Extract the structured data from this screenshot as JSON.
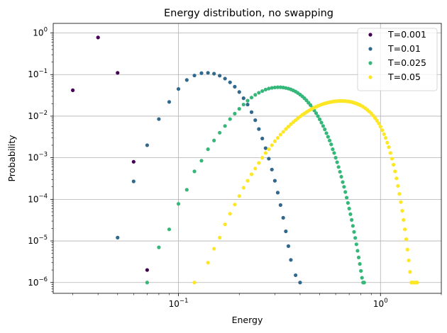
{
  "chart_data": {
    "type": "scatter",
    "title": "Energy distribution, no swapping",
    "xlabel": "Energy",
    "ylabel": "Probability",
    "xscale": "log",
    "yscale": "log",
    "xlim": [
      0.024,
      2.0
    ],
    "ylim": [
      5.5e-07,
      1.7
    ],
    "grid": true,
    "legend_position": "top-right",
    "x_ticks": [
      {
        "base": "10",
        "exp": "−1"
      },
      {
        "base": "10",
        "exp": "0"
      }
    ],
    "y_ticks": [
      {
        "base": "10",
        "exp": "−6"
      },
      {
        "base": "10",
        "exp": "−5"
      },
      {
        "base": "10",
        "exp": "−4"
      },
      {
        "base": "10",
        "exp": "−3"
      },
      {
        "base": "10",
        "exp": "−2"
      },
      {
        "base": "10",
        "exp": "−1"
      },
      {
        "base": "10",
        "exp": "0"
      }
    ],
    "series": [
      {
        "name": "T=0.001",
        "color": "#440154",
        "points": [
          [
            0.03,
            0.042
          ],
          [
            0.04,
            0.78
          ],
          [
            0.05,
            0.11
          ],
          [
            0.06,
            0.0008
          ],
          [
            0.07,
            2e-06
          ]
        ]
      },
      {
        "name": "T=0.01",
        "color": "#31688e",
        "points": [
          [
            0.05,
            1.2e-05
          ],
          [
            0.06,
            0.00027
          ],
          [
            0.07,
            0.002
          ],
          [
            0.08,
            0.0085
          ],
          [
            0.09,
            0.022
          ],
          [
            0.1,
            0.045
          ],
          [
            0.11,
            0.074
          ],
          [
            0.12,
            0.095
          ],
          [
            0.13,
            0.108
          ],
          [
            0.14,
            0.11
          ],
          [
            0.15,
            0.105
          ],
          [
            0.16,
            0.094
          ],
          [
            0.17,
            0.08
          ],
          [
            0.18,
            0.065
          ],
          [
            0.19,
            0.051
          ],
          [
            0.2,
            0.038
          ],
          [
            0.21,
            0.027
          ],
          [
            0.22,
            0.019
          ],
          [
            0.23,
            0.0125
          ],
          [
            0.24,
            0.008
          ],
          [
            0.25,
            0.0049
          ],
          [
            0.26,
            0.0029
          ],
          [
            0.27,
            0.0017
          ],
          [
            0.28,
            0.00095
          ],
          [
            0.29,
            0.00052
          ],
          [
            0.3,
            0.00028
          ],
          [
            0.31,
            0.000145
          ],
          [
            0.32,
            7.3e-05
          ],
          [
            0.33,
            3.6e-05
          ],
          [
            0.34,
            1.7e-05
          ],
          [
            0.35,
            7.5e-06
          ],
          [
            0.36,
            3.5e-06
          ],
          [
            0.38,
            1.5e-06
          ],
          [
            0.4,
            1e-06
          ]
        ]
      },
      {
        "name": "T=0.025",
        "color": "#35b779",
        "points": [
          [
            0.07,
            1e-06
          ],
          [
            0.08,
            7e-06
          ],
          [
            0.09,
            1.9e-05
          ],
          [
            0.1,
            7.8e-05
          ],
          [
            0.11,
            0.00017
          ],
          [
            0.12,
            0.00047
          ],
          [
            0.13,
            0.00085
          ],
          [
            0.14,
            0.0016
          ],
          [
            0.15,
            0.0026
          ],
          [
            0.16,
            0.004
          ],
          [
            0.17,
            0.0058
          ],
          [
            0.18,
            0.0085
          ],
          [
            0.19,
            0.0115
          ],
          [
            0.2,
            0.015
          ],
          [
            0.21,
            0.019
          ],
          [
            0.22,
            0.0235
          ],
          [
            0.23,
            0.028
          ],
          [
            0.24,
            0.0325
          ],
          [
            0.25,
            0.0365
          ],
          [
            0.26,
            0.04
          ],
          [
            0.27,
            0.0435
          ],
          [
            0.28,
            0.046
          ],
          [
            0.29,
            0.0478
          ],
          [
            0.3,
            0.049
          ],
          [
            0.31,
            0.0495
          ],
          [
            0.32,
            0.0495
          ],
          [
            0.33,
            0.0488
          ],
          [
            0.34,
            0.0475
          ],
          [
            0.35,
            0.046
          ],
          [
            0.36,
            0.044
          ],
          [
            0.37,
            0.0415
          ],
          [
            0.38,
            0.039
          ],
          [
            0.39,
            0.036
          ],
          [
            0.4,
            0.033
          ],
          [
            0.41,
            0.03
          ],
          [
            0.42,
            0.027
          ],
          [
            0.43,
            0.024
          ],
          [
            0.44,
            0.021
          ],
          [
            0.45,
            0.0185
          ],
          [
            0.46,
            0.016
          ],
          [
            0.47,
            0.0138
          ],
          [
            0.48,
            0.0118
          ],
          [
            0.49,
            0.01
          ],
          [
            0.5,
            0.0084
          ],
          [
            0.51,
            0.007
          ],
          [
            0.52,
            0.0058
          ],
          [
            0.53,
            0.0048
          ],
          [
            0.54,
            0.0039
          ],
          [
            0.55,
            0.0032
          ],
          [
            0.56,
            0.0026
          ],
          [
            0.57,
            0.0021
          ],
          [
            0.58,
            0.0016
          ],
          [
            0.59,
            0.0013
          ],
          [
            0.6,
            0.001
          ],
          [
            0.61,
            0.00078
          ],
          [
            0.62,
            0.0006
          ],
          [
            0.63,
            0.00046
          ],
          [
            0.64,
            0.00035
          ],
          [
            0.65,
            0.00026
          ],
          [
            0.66,
            0.0002
          ],
          [
            0.67,
            0.00015
          ],
          [
            0.68,
            0.00011
          ],
          [
            0.69,
            8.2e-05
          ],
          [
            0.7,
            6e-05
          ],
          [
            0.71,
            4.4e-05
          ],
          [
            0.72,
            3.2e-05
          ],
          [
            0.73,
            2.3e-05
          ],
          [
            0.74,
            1.65e-05
          ],
          [
            0.75,
            1.18e-05
          ],
          [
            0.76,
            8.3e-06
          ],
          [
            0.77,
            5.8e-06
          ],
          [
            0.78,
            4e-06
          ],
          [
            0.79,
            2.8e-06
          ],
          [
            0.8,
            1.9e-06
          ],
          [
            0.81,
            1.3e-06
          ],
          [
            0.82,
            1e-06
          ],
          [
            0.83,
            1e-06
          ]
        ]
      },
      {
        "name": "T=0.05",
        "color": "#fde725",
        "points": [
          [
            0.12,
            1e-06
          ],
          [
            0.14,
            3e-06
          ],
          [
            0.15,
            6.5e-06
          ],
          [
            0.16,
            1.2e-05
          ],
          [
            0.17,
            2.5e-05
          ],
          [
            0.18,
            4.5e-05
          ],
          [
            0.19,
            7.5e-05
          ],
          [
            0.2,
            0.00012
          ],
          [
            0.21,
            0.00019
          ],
          [
            0.22,
            0.00028
          ],
          [
            0.23,
            0.0004
          ],
          [
            0.24,
            0.00055
          ],
          [
            0.25,
            0.00075
          ],
          [
            0.26,
            0.001
          ],
          [
            0.27,
            0.0013
          ],
          [
            0.28,
            0.0016
          ],
          [
            0.29,
            0.002
          ],
          [
            0.3,
            0.0025
          ],
          [
            0.31,
            0.003
          ],
          [
            0.32,
            0.0036
          ],
          [
            0.33,
            0.0042
          ],
          [
            0.34,
            0.0049
          ],
          [
            0.35,
            0.0056
          ],
          [
            0.36,
            0.0064
          ],
          [
            0.37,
            0.0072
          ],
          [
            0.38,
            0.008
          ],
          [
            0.39,
            0.0089
          ],
          [
            0.4,
            0.0098
          ],
          [
            0.41,
            0.0107
          ],
          [
            0.42,
            0.0116
          ],
          [
            0.43,
            0.0125
          ],
          [
            0.44,
            0.0134
          ],
          [
            0.45,
            0.0143
          ],
          [
            0.46,
            0.0152
          ],
          [
            0.47,
            0.016
          ],
          [
            0.48,
            0.0168
          ],
          [
            0.49,
            0.0176
          ],
          [
            0.5,
            0.0183
          ],
          [
            0.51,
            0.019
          ],
          [
            0.52,
            0.0196
          ],
          [
            0.53,
            0.0202
          ],
          [
            0.54,
            0.0207
          ],
          [
            0.55,
            0.0212
          ],
          [
            0.56,
            0.0216
          ],
          [
            0.57,
            0.022
          ],
          [
            0.58,
            0.0223
          ],
          [
            0.59,
            0.0226
          ],
          [
            0.6,
            0.0228
          ],
          [
            0.61,
            0.023
          ],
          [
            0.62,
            0.0231
          ],
          [
            0.63,
            0.0232
          ],
          [
            0.64,
            0.0232
          ],
          [
            0.65,
            0.0232
          ],
          [
            0.66,
            0.0231
          ],
          [
            0.67,
            0.023
          ],
          [
            0.68,
            0.0228
          ],
          [
            0.69,
            0.0226
          ],
          [
            0.7,
            0.0224
          ],
          [
            0.71,
            0.0221
          ],
          [
            0.72,
            0.0218
          ],
          [
            0.73,
            0.0214
          ],
          [
            0.74,
            0.021
          ],
          [
            0.75,
            0.0206
          ],
          [
            0.76,
            0.0201
          ],
          [
            0.77,
            0.0196
          ],
          [
            0.78,
            0.0191
          ],
          [
            0.79,
            0.0186
          ],
          [
            0.8,
            0.018
          ],
          [
            0.82,
            0.0168
          ],
          [
            0.84,
            0.0155
          ],
          [
            0.86,
            0.0142
          ],
          [
            0.88,
            0.0129
          ],
          [
            0.9,
            0.0116
          ],
          [
            0.92,
            0.0103
          ],
          [
            0.94,
            0.009
          ],
          [
            0.96,
            0.0078
          ],
          [
            0.98,
            0.0067
          ],
          [
            1.0,
            0.0056
          ],
          [
            1.02,
            0.0046
          ],
          [
            1.04,
            0.0037
          ],
          [
            1.06,
            0.003
          ],
          [
            1.08,
            0.0023
          ],
          [
            1.1,
            0.0018
          ],
          [
            1.12,
            0.0013
          ],
          [
            1.14,
            0.00095
          ],
          [
            1.16,
            0.00068
          ],
          [
            1.18,
            0.00047
          ],
          [
            1.2,
            0.00032
          ],
          [
            1.22,
            0.00021
          ],
          [
            1.24,
            0.000135
          ],
          [
            1.26,
            8.6e-05
          ],
          [
            1.28,
            5.3e-05
          ],
          [
            1.3,
            3.2e-05
          ],
          [
            1.32,
            1.9e-05
          ],
          [
            1.34,
            1.1e-05
          ],
          [
            1.36,
            6.2e-06
          ],
          [
            1.38,
            3.4e-06
          ],
          [
            1.4,
            1.8e-06
          ],
          [
            1.42,
            1e-06
          ],
          [
            1.44,
            1e-06
          ],
          [
            1.46,
            1e-06
          ],
          [
            1.48,
            1e-06
          ],
          [
            1.5,
            1e-06
          ],
          [
            1.52,
            1e-06
          ]
        ]
      }
    ]
  }
}
